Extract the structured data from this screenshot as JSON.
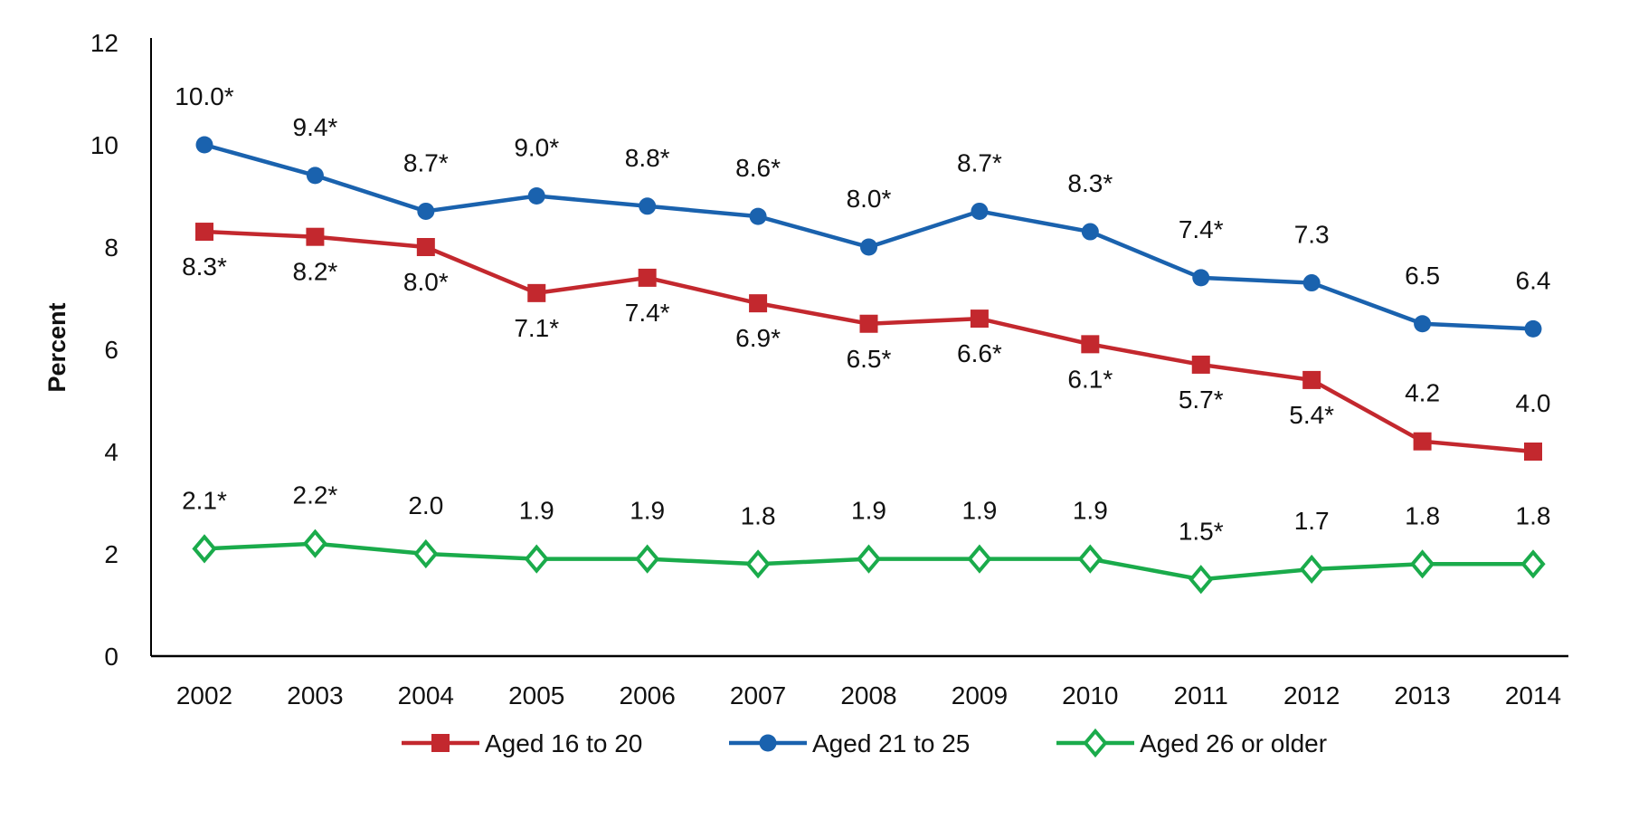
{
  "chart_data": {
    "type": "line",
    "title": "",
    "xlabel": "",
    "ylabel": "Percent",
    "ylim": [
      0,
      12
    ],
    "yticks": [
      0,
      2,
      4,
      6,
      8,
      10,
      12
    ],
    "grid": false,
    "legend_position": "bottom",
    "categories": [
      "2002",
      "2003",
      "2004",
      "2005",
      "2006",
      "2007",
      "2008",
      "2009",
      "2010",
      "2011",
      "2012",
      "2013",
      "2014"
    ],
    "series": [
      {
        "name": "Aged 16 to 20",
        "color": "#c3282e",
        "marker": "square",
        "values": [
          8.3,
          8.2,
          8.0,
          7.1,
          7.4,
          6.9,
          6.5,
          6.6,
          6.1,
          5.7,
          5.4,
          4.2,
          4.0
        ],
        "labels": [
          "8.3*",
          "8.2*",
          "8.0*",
          "7.1*",
          "7.4*",
          "6.9*",
          "6.5*",
          "6.6*",
          "6.1*",
          "5.7*",
          "5.4*",
          "4.2",
          "4.0"
        ],
        "label_position": [
          "below",
          "below",
          "below",
          "below",
          "below",
          "below",
          "below",
          "below",
          "below",
          "below",
          "below",
          "above",
          "above"
        ]
      },
      {
        "name": "Aged 21 to 25",
        "color": "#1a62ae",
        "marker": "circle",
        "values": [
          10.0,
          9.4,
          8.7,
          9.0,
          8.8,
          8.6,
          8.0,
          8.7,
          8.3,
          7.4,
          7.3,
          6.5,
          6.4
        ],
        "labels": [
          "10.0*",
          "9.4*",
          "8.7*",
          "9.0*",
          "8.8*",
          "8.6*",
          "8.0*",
          "8.7*",
          "8.3*",
          "7.4*",
          "7.3",
          "6.5",
          "6.4"
        ],
        "label_position": [
          "above",
          "above",
          "above",
          "above",
          "above",
          "above",
          "above",
          "above",
          "above",
          "above",
          "above",
          "above",
          "above"
        ]
      },
      {
        "name": "Aged 26 or older",
        "color": "#1aab4b",
        "marker": "diamond-open",
        "values": [
          2.1,
          2.2,
          2.0,
          1.9,
          1.9,
          1.8,
          1.9,
          1.9,
          1.9,
          1.5,
          1.7,
          1.8,
          1.8
        ],
        "labels": [
          "2.1*",
          "2.2*",
          "2.0",
          "1.9",
          "1.9",
          "1.8",
          "1.9",
          "1.9",
          "1.9",
          "1.5*",
          "1.7",
          "1.8",
          "1.8"
        ],
        "label_position": [
          "above",
          "above",
          "above",
          "above",
          "above",
          "above",
          "above",
          "above",
          "above",
          "above",
          "above",
          "above",
          "above"
        ]
      }
    ]
  }
}
